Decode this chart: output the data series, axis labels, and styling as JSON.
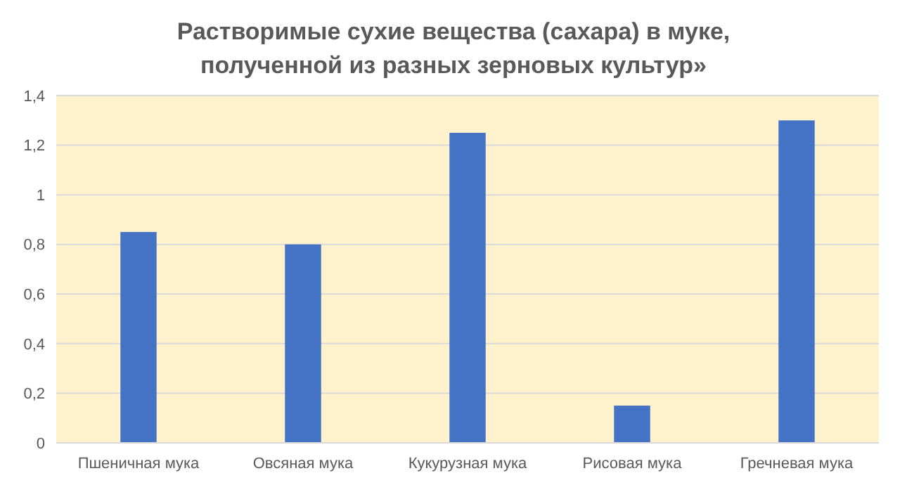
{
  "chart_data": {
    "type": "bar",
    "title": "Растворимые сухие вещества (сахара) в муке, полученной из разных зерновых культур»",
    "categories": [
      "Пшеничная мука",
      "Овсяная мука",
      "Кукурузная мука",
      "Рисовая мука",
      "Гречневая мука"
    ],
    "values": [
      0.85,
      0.8,
      1.25,
      0.15,
      1.3
    ],
    "color": "#4472c4",
    "ylim": [
      0,
      1.4
    ],
    "yticks": [
      0,
      {
        "value": 0.2,
        "label": "0,2"
      },
      {
        "value": 0.4,
        "label": "0,4"
      },
      {
        "value": 0.6,
        "label": "0,6"
      },
      {
        "value": 0.8,
        "label": "0,8"
      },
      1,
      {
        "value": 1.2,
        "label": "1,2"
      },
      {
        "value": 1.4,
        "label": "1,4"
      }
    ],
    "grid": "y"
  }
}
